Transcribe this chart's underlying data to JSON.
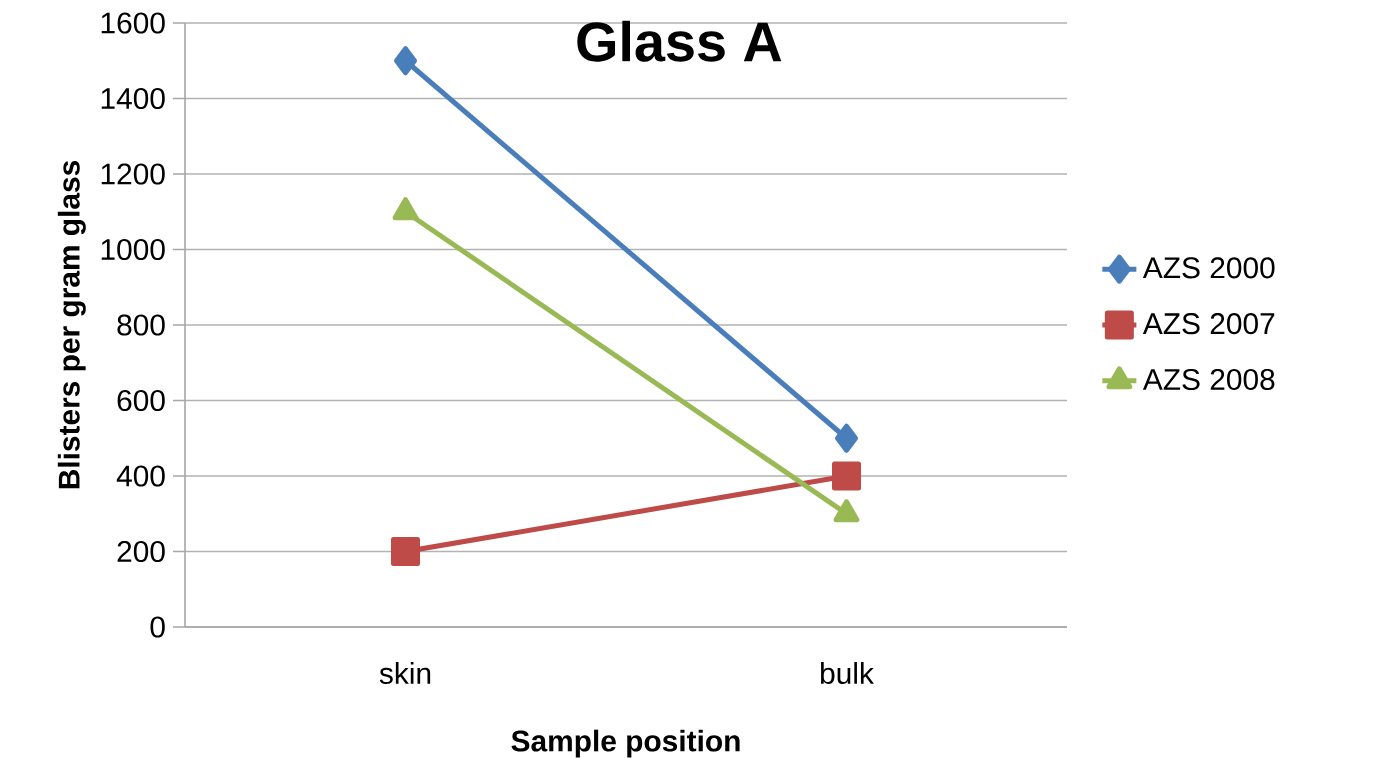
{
  "chart_data": {
    "type": "line",
    "title": "Glass A",
    "xlabel": "Sample position",
    "ylabel": "Blisters per gram glass",
    "categories": [
      "skin",
      "bulk"
    ],
    "series": [
      {
        "name": "AZS 2000",
        "color": "#4a7ebb",
        "marker": "diamond",
        "values": [
          1500,
          500
        ]
      },
      {
        "name": "AZS 2007",
        "color": "#be4b48",
        "marker": "square",
        "values": [
          200,
          400
        ]
      },
      {
        "name": "AZS 2008",
        "color": "#98b954",
        "marker": "triangle",
        "values": [
          1100,
          300
        ]
      }
    ],
    "ylim": [
      0,
      1600
    ],
    "yticks": [
      0,
      200,
      400,
      600,
      800,
      1000,
      1200,
      1400,
      1600
    ],
    "grid": "y",
    "legend": "right",
    "line_style": "solid"
  }
}
